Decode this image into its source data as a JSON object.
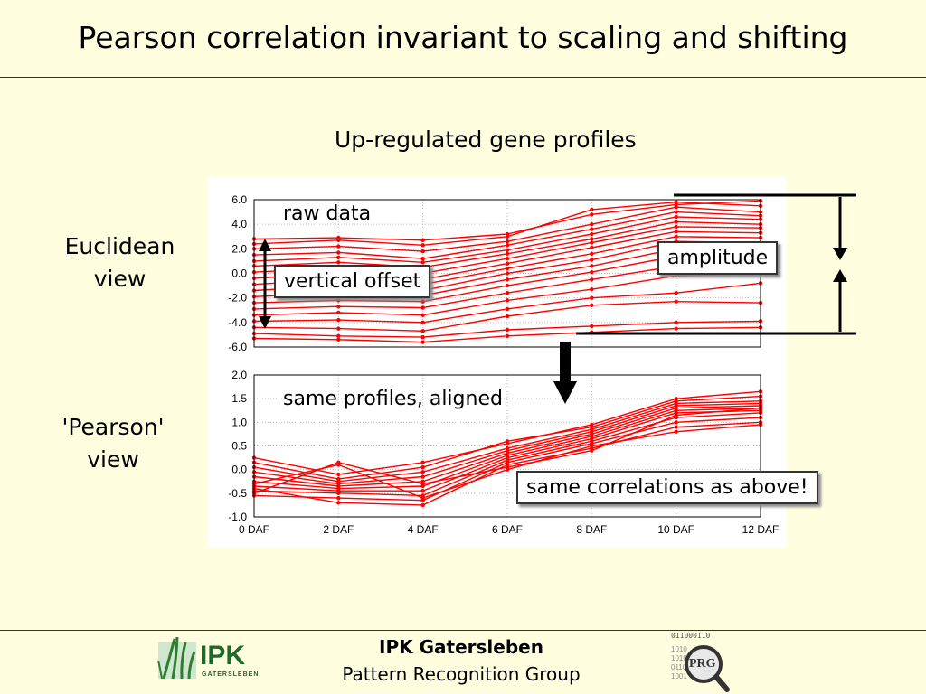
{
  "slide": {
    "title": "Pearson correlation invariant to scaling and shifting",
    "subtitle": "Up-regulated gene profiles",
    "euclidean_label_1": "Euclidean",
    "euclidean_label_2": "view",
    "pearson_label_1": "'Pearson'",
    "pearson_label_2": "view",
    "note_raw": "raw data",
    "note_aligned": "same profiles, aligned",
    "box_vertical_offset": "vertical offset",
    "box_amplitude": "amplitude",
    "box_same_correlations": "same correlations as above!"
  },
  "footer": {
    "org": "IPK Gatersleben",
    "group": "Pattern Recognition Group",
    "logo_left_text": "IPK",
    "logo_left_sub": "GATERSLEBEN",
    "logo_right_text": "PRG",
    "logo_right_binary": "011000110"
  },
  "colors": {
    "series": "#ff0000",
    "background": "#ffffe0"
  },
  "chart_data": [
    {
      "type": "line",
      "title": "",
      "xlabel": "",
      "ylabel": "",
      "categories": [
        "0 DAF",
        "2 DAF",
        "4 DAF",
        "6 DAF",
        "8 DAF",
        "10 DAF",
        "12 DAF"
      ],
      "ylim": [
        -6.0,
        6.0
      ],
      "yticks": [
        "-6.0",
        "-4.0",
        "-2.0",
        "0.0",
        "2.0",
        "4.0",
        "6.0"
      ],
      "grid": true,
      "series": [
        {
          "values": [
            2.8,
            2.9,
            2.7,
            3.2,
            4.8,
            5.6,
            5.9
          ]
        },
        {
          "values": [
            2.4,
            2.7,
            2.3,
            3.0,
            5.2,
            5.8,
            5.5
          ]
        },
        {
          "values": [
            2.0,
            2.2,
            1.8,
            2.6,
            4.0,
            5.4,
            5.0
          ]
        },
        {
          "values": [
            1.5,
            1.7,
            1.2,
            2.3,
            3.6,
            5.0,
            4.7
          ]
        },
        {
          "values": [
            1.0,
            1.3,
            0.9,
            1.9,
            3.2,
            4.6,
            4.4
          ]
        },
        {
          "values": [
            0.6,
            0.9,
            0.5,
            1.6,
            2.8,
            4.2,
            4.0
          ]
        },
        {
          "values": [
            0.1,
            0.4,
            0.0,
            1.2,
            2.5,
            3.8,
            3.7
          ]
        },
        {
          "values": [
            -0.4,
            0.0,
            -0.5,
            0.8,
            2.1,
            3.4,
            3.3
          ]
        },
        {
          "values": [
            -0.9,
            -0.5,
            -0.9,
            0.4,
            1.6,
            3.0,
            2.9
          ]
        },
        {
          "values": [
            -1.4,
            -1.0,
            -1.4,
            0.0,
            1.1,
            2.6,
            2.5
          ]
        },
        {
          "values": [
            -1.9,
            -1.6,
            -1.8,
            -0.5,
            0.6,
            2.0,
            2.1
          ]
        },
        {
          "values": [
            -2.4,
            -2.2,
            -2.3,
            -1.0,
            0.1,
            1.4,
            1.6
          ]
        },
        {
          "values": [
            -2.9,
            -2.7,
            -2.8,
            -1.6,
            -0.5,
            0.6,
            0.9
          ]
        },
        {
          "values": [
            -3.4,
            -3.2,
            -3.4,
            -2.2,
            -1.3,
            -0.2,
            0.0
          ]
        },
        {
          "values": [
            -3.9,
            -3.8,
            -4.0,
            -2.9,
            -2.0,
            -1.6,
            -0.8
          ]
        },
        {
          "values": [
            -4.4,
            -4.5,
            -4.7,
            -3.5,
            -2.6,
            -2.3,
            -2.4
          ]
        },
        {
          "values": [
            -4.9,
            -5.1,
            -5.2,
            -4.6,
            -4.3,
            -4.0,
            -3.9
          ]
        },
        {
          "values": [
            -5.3,
            -5.4,
            -5.6,
            -5.1,
            -4.8,
            -4.5,
            -4.4
          ]
        }
      ]
    },
    {
      "type": "line",
      "title": "",
      "xlabel": "",
      "ylabel": "",
      "categories": [
        "0 DAF",
        "2 DAF",
        "4 DAF",
        "6 DAF",
        "8 DAF",
        "10 DAF",
        "12 DAF"
      ],
      "ylim": [
        -1.0,
        2.0
      ],
      "yticks": [
        "-1.0",
        "-0.5",
        "0.0",
        "0.5",
        "1.0",
        "1.5",
        "2.0"
      ],
      "grid": true,
      "series": [
        {
          "values": [
            0.25,
            -0.1,
            0.15,
            0.55,
            0.95,
            1.5,
            1.65
          ]
        },
        {
          "values": [
            0.15,
            -0.2,
            0.05,
            0.6,
            0.9,
            1.45,
            1.55
          ]
        },
        {
          "values": [
            0.05,
            -0.25,
            -0.05,
            0.45,
            0.85,
            1.4,
            1.45
          ]
        },
        {
          "values": [
            -0.05,
            -0.3,
            -0.15,
            0.4,
            0.8,
            1.35,
            1.4
          ]
        },
        {
          "values": [
            -0.15,
            -0.35,
            -0.25,
            0.35,
            0.75,
            1.3,
            1.35
          ]
        },
        {
          "values": [
            -0.25,
            -0.4,
            -0.35,
            0.3,
            0.7,
            1.25,
            1.3
          ]
        },
        {
          "values": [
            -0.35,
            -0.45,
            -0.45,
            0.25,
            0.65,
            1.2,
            1.25
          ]
        },
        {
          "values": [
            -0.45,
            -0.5,
            -0.55,
            0.2,
            0.6,
            1.1,
            1.2
          ]
        },
        {
          "values": [
            -0.55,
            -0.6,
            -0.65,
            0.15,
            0.55,
            1.0,
            1.1
          ]
        },
        {
          "values": [
            -0.4,
            -0.7,
            -0.75,
            0.1,
            0.45,
            0.9,
            1.0
          ]
        },
        {
          "values": [
            -0.3,
            0.1,
            -0.6,
            0.0,
            0.5,
            0.8,
            0.95
          ]
        },
        {
          "values": [
            -0.5,
            0.15,
            -0.3,
            0.05,
            0.4,
            1.15,
            1.3
          ]
        }
      ]
    }
  ]
}
